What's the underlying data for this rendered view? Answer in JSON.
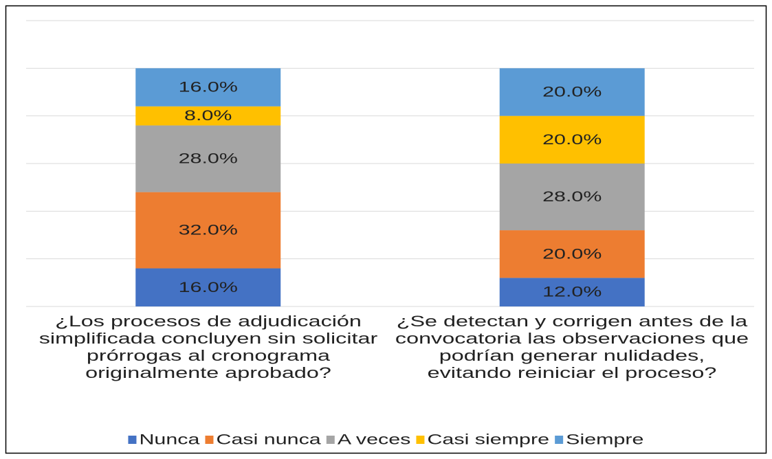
{
  "chart_data": {
    "type": "stacked_bar",
    "categories": [
      "¿Los procesos de adjudicación simplificada concluyen sin solicitar prórrogas al cronograma originalmente aprobado?",
      "¿Se detectan y corrigen antes de la convocatoria las observaciones que podrían generar nulidades, evitando reiniciar el proceso?"
    ],
    "series": [
      {
        "name": "Nunca",
        "color": "#4472c4",
        "values": [
          16,
          12
        ],
        "value_labels": [
          "16.0%",
          "12.0%"
        ]
      },
      {
        "name": "Casi nunca",
        "color": "#ed7d31",
        "values": [
          32,
          20
        ],
        "value_labels": [
          "32.0%",
          "20.0%"
        ]
      },
      {
        "name": "A veces",
        "color": "#a5a5a5",
        "values": [
          28,
          28
        ],
        "value_labels": [
          "28.0%",
          "28.0%"
        ]
      },
      {
        "name": "Casi siempre",
        "color": "#ffc000",
        "values": [
          8,
          20
        ],
        "value_labels": [
          "8.0%",
          "20.0%"
        ]
      },
      {
        "name": "Siempre",
        "color": "#5b9bd5",
        "values": [
          16,
          20
        ],
        "value_labels": [
          "16.0%",
          "20.0%"
        ]
      }
    ],
    "ylim": [
      0,
      120
    ],
    "yticks": [
      0,
      20,
      40,
      60,
      80,
      100,
      120
    ],
    "grid": true,
    "legend": "bottom"
  }
}
